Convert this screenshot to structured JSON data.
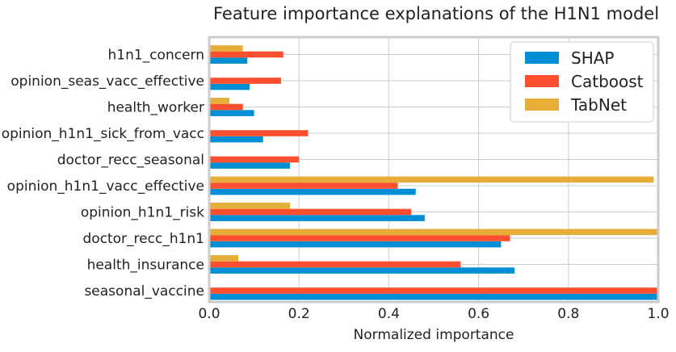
{
  "chart_data": {
    "type": "bar",
    "orientation": "horizontal",
    "title": "Feature importance explanations of the H1N1 model",
    "xlabel": "Normalized importance",
    "ylabel": "",
    "xlim": [
      0,
      1
    ],
    "xticks": [
      "0.0",
      "0.2",
      "0.4",
      "0.6",
      "0.8",
      "1.0"
    ],
    "grid": true,
    "legend_position": "top-right",
    "categories": [
      "seasonal_vaccine",
      "health_insurance",
      "doctor_recc_h1n1",
      "opinion_h1n1_risk",
      "opinion_h1n1_vacc_effective",
      "doctor_recc_seasonal",
      "opinion_h1n1_sick_from_vacc",
      "health_worker",
      "opinion_seas_vacc_effective",
      "h1n1_concern"
    ],
    "series": [
      {
        "name": "SHAP",
        "color": "#008fd5",
        "values": [
          1.0,
          0.68,
          0.65,
          0.48,
          0.46,
          0.18,
          0.12,
          0.1,
          0.09,
          0.085
        ]
      },
      {
        "name": "Catboost",
        "color": "#fc4f30",
        "values": [
          1.0,
          0.56,
          0.67,
          0.45,
          0.42,
          0.2,
          0.22,
          0.075,
          0.16,
          0.165
        ]
      },
      {
        "name": "TabNet",
        "color": "#e5ae38",
        "values": [
          0.0,
          0.065,
          1.0,
          0.18,
          0.99,
          0.0,
          0.0,
          0.045,
          0.0,
          0.075
        ]
      }
    ]
  }
}
